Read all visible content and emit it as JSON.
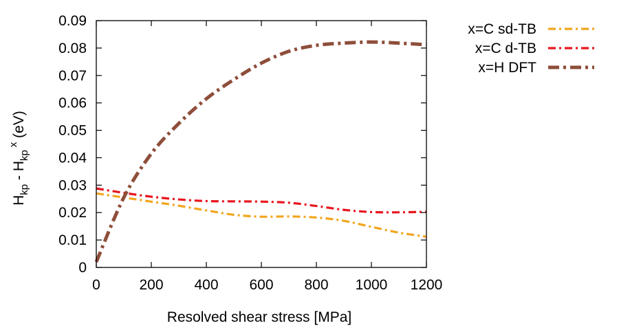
{
  "chart_data": {
    "type": "line",
    "xlabel": "Resolved shear stress [MPa]",
    "ylabel": {
      "a": "H",
      "a_sub": "kp",
      "sep": " - ",
      "b": "H",
      "b_sub": "kp",
      "b_sup": "x",
      "unit": " (eV)"
    },
    "xlim": [
      0,
      1200
    ],
    "ylim": [
      0,
      0.09
    ],
    "xticks": [
      "0",
      "200",
      "400",
      "600",
      "800",
      "1000",
      "1200"
    ],
    "yticks": [
      "0",
      "0.01",
      "0.02",
      "0.03",
      "0.04",
      "0.05",
      "0.06",
      "0.07",
      "0.08",
      "0.09"
    ],
    "grid": false,
    "legend_position": "outside-top-right",
    "series": [
      {
        "name": "x=C sd-TB",
        "color": "#f2a51c",
        "style": "dash-dot",
        "x": [
          0,
          100,
          200,
          300,
          400,
          500,
          600,
          700,
          800,
          900,
          1000,
          1100,
          1200
        ],
        "y": [
          0.027,
          0.0255,
          0.024,
          0.0225,
          0.0208,
          0.0192,
          0.0185,
          0.0186,
          0.0182,
          0.017,
          0.0148,
          0.0127,
          0.0112
        ]
      },
      {
        "name": "x=C d-TB",
        "color": "#e8151d",
        "style": "dash-dot",
        "x": [
          0,
          100,
          200,
          300,
          400,
          500,
          600,
          700,
          800,
          900,
          1000,
          1100,
          1200
        ],
        "y": [
          0.0288,
          0.0272,
          0.0258,
          0.0248,
          0.0242,
          0.0241,
          0.024,
          0.0236,
          0.0224,
          0.021,
          0.0202,
          0.0201,
          0.0203
        ]
      },
      {
        "name": "x=H DFT",
        "color": "#8e4e3a",
        "style": "dash-dot-thick",
        "x": [
          0,
          100,
          200,
          300,
          400,
          500,
          600,
          700,
          800,
          900,
          1000,
          1100,
          1200
        ],
        "y": [
          0.002,
          0.0255,
          0.0415,
          0.0525,
          0.0615,
          0.0685,
          0.0745,
          0.0788,
          0.081,
          0.0818,
          0.0822,
          0.0818,
          0.0812
        ]
      }
    ]
  }
}
